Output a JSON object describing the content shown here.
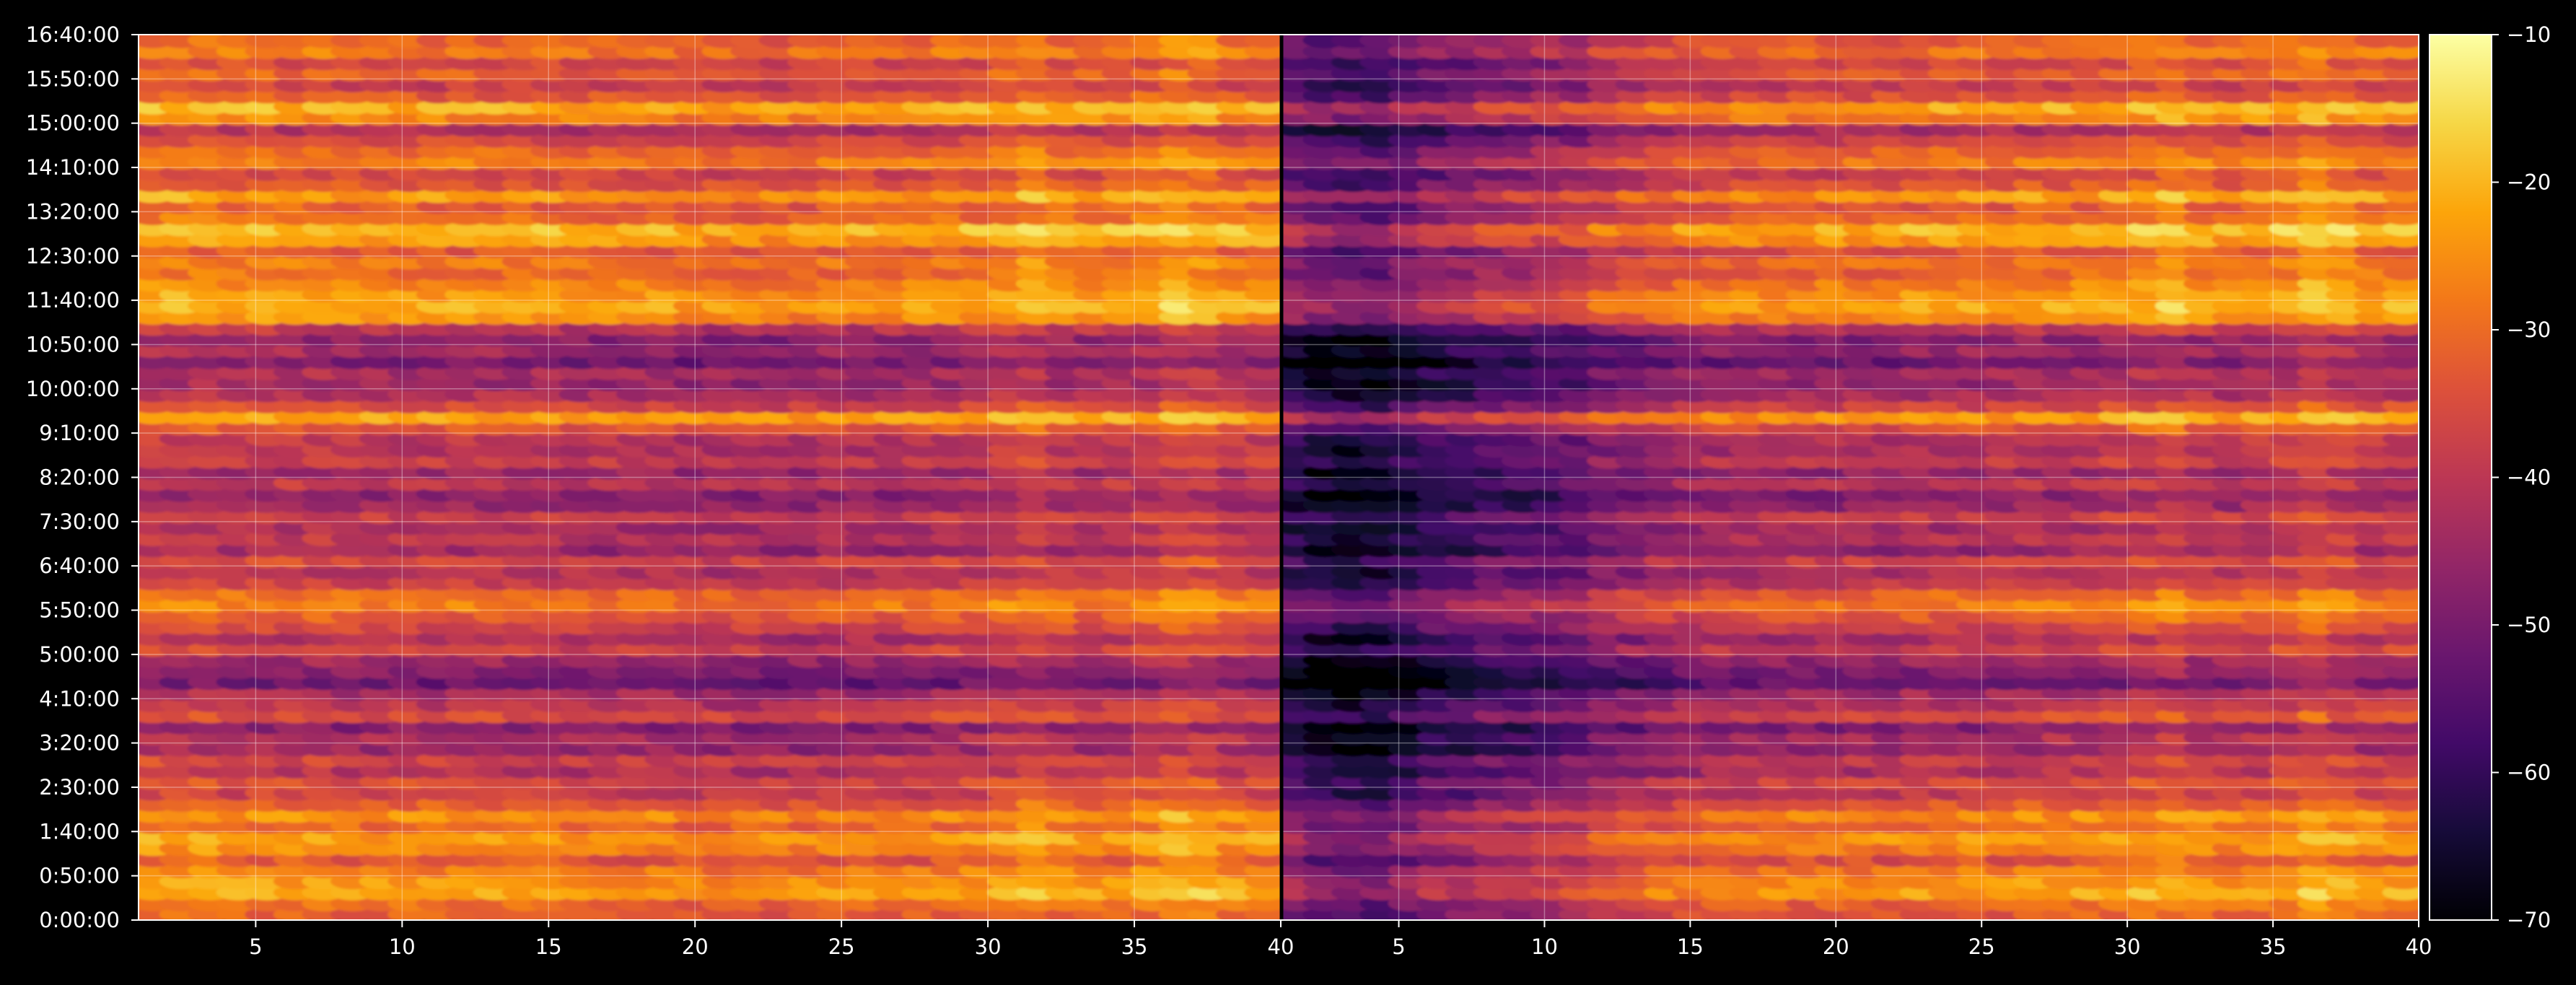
{
  "chart_data": {
    "type": "heatmap",
    "title": "",
    "xlabel": "",
    "ylabel": "",
    "colormap": "inferno",
    "background_color": "#000000",
    "grid": true,
    "panels": [
      {
        "name": "",
        "x_range": [
          1,
          40
        ]
      },
      {
        "name": "",
        "x_range": [
          1,
          40
        ]
      }
    ],
    "x_ticks": [
      "5",
      "10",
      "15",
      "20",
      "25",
      "30",
      "35",
      "40"
    ],
    "y_ticks": [
      "0:00:00",
      "0:50:00",
      "1:40:00",
      "2:30:00",
      "3:20:00",
      "4:10:00",
      "5:00:00",
      "5:50:00",
      "6:40:00",
      "7:30:00",
      "8:20:00",
      "9:10:00",
      "10:00:00",
      "10:50:00",
      "11:40:00",
      "12:30:00",
      "13:20:00",
      "14:10:00",
      "15:00:00",
      "15:50:00",
      "16:40:00"
    ],
    "colorbar": {
      "min": -70,
      "max": -10,
      "ticks": [
        "−10",
        "−20",
        "−30",
        "−40",
        "−50",
        "−60",
        "−70"
      ]
    },
    "row_levels": [
      -32,
      -30,
      -22,
      -24,
      -27,
      -33,
      -26,
      -23,
      -30,
      -25,
      -32,
      -38,
      -35,
      -41,
      -37,
      -45,
      -42,
      -48,
      -35,
      -40,
      -43,
      -52,
      -48,
      -45,
      -37,
      -42,
      -36,
      -32,
      -27,
      -30,
      -38,
      -41,
      -36,
      -45,
      -40,
      -43,
      -38,
      -45,
      -47,
      -40,
      -45,
      -38,
      -41,
      -40,
      -33,
      -22,
      -36,
      -42,
      -45,
      -43,
      -50,
      -44,
      -47,
      -40,
      -25,
      -21,
      -23,
      -26,
      -30,
      -28,
      -33,
      -23,
      -19,
      -30,
      -32,
      -23,
      -33,
      -36,
      -27,
      -30,
      -36,
      -42,
      -26,
      -21,
      -33,
      -38,
      -32,
      -36,
      -28,
      -31
    ],
    "column_levels_left": [
      2,
      2,
      2,
      1,
      1,
      1,
      1,
      0,
      0,
      0,
      0,
      0,
      0,
      0,
      0,
      -1,
      -1,
      -1,
      -1,
      -2,
      -2,
      -2,
      -2,
      -2,
      -1,
      -1,
      -1,
      -1,
      0,
      0,
      2,
      4,
      1,
      0,
      1,
      2,
      5,
      4,
      1,
      1
    ],
    "column_levels_right": [
      -20,
      -23,
      -24,
      -24,
      -21,
      -18,
      -17,
      -14,
      -14,
      -13,
      -12,
      -8,
      -7,
      -5,
      -4,
      -3,
      -3,
      -2,
      -2,
      -2,
      -2,
      -2,
      -1,
      -1,
      -1,
      -1,
      0,
      0,
      0,
      1,
      2,
      4,
      1,
      0,
      1,
      2,
      5,
      3,
      1,
      1
    ]
  }
}
